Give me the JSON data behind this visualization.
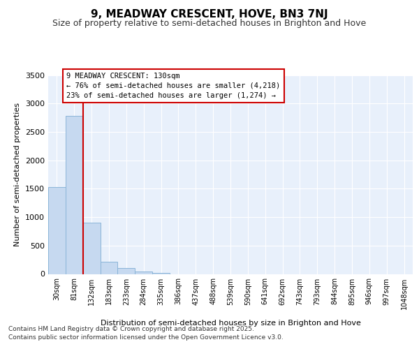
{
  "title1": "9, MEADWAY CRESCENT, HOVE, BN3 7NJ",
  "title2": "Size of property relative to semi-detached houses in Brighton and Hove",
  "xlabel": "Distribution of semi-detached houses by size in Brighton and Hove",
  "ylabel": "Number of semi-detached properties",
  "categories": [
    "30sqm",
    "81sqm",
    "132sqm",
    "183sqm",
    "233sqm",
    "284sqm",
    "335sqm",
    "386sqm",
    "437sqm",
    "488sqm",
    "539sqm",
    "590sqm",
    "641sqm",
    "692sqm",
    "743sqm",
    "793sqm",
    "844sqm",
    "895sqm",
    "946sqm",
    "997sqm",
    "1048sqm"
  ],
  "values": [
    1530,
    2780,
    900,
    220,
    100,
    45,
    20,
    0,
    0,
    0,
    0,
    0,
    0,
    0,
    0,
    0,
    0,
    0,
    0,
    0,
    0
  ],
  "bar_color": "#c6d9f0",
  "bar_edge_color": "#8ab4d8",
  "property_line_idx": 2,
  "property_line_color": "#cc0000",
  "annotation_title": "9 MEADWAY CRESCENT: 130sqm",
  "annotation_line1": "← 76% of semi-detached houses are smaller (4,218)",
  "annotation_line2": "23% of semi-detached houses are larger (1,274) →",
  "annotation_box_color": "#cc0000",
  "ylim": [
    0,
    3500
  ],
  "yticks": [
    0,
    500,
    1000,
    1500,
    2000,
    2500,
    3000,
    3500
  ],
  "bg_color": "#e8f0fb",
  "grid_color": "#ffffff",
  "footer1": "Contains HM Land Registry data © Crown copyright and database right 2025.",
  "footer2": "Contains public sector information licensed under the Open Government Licence v3.0."
}
